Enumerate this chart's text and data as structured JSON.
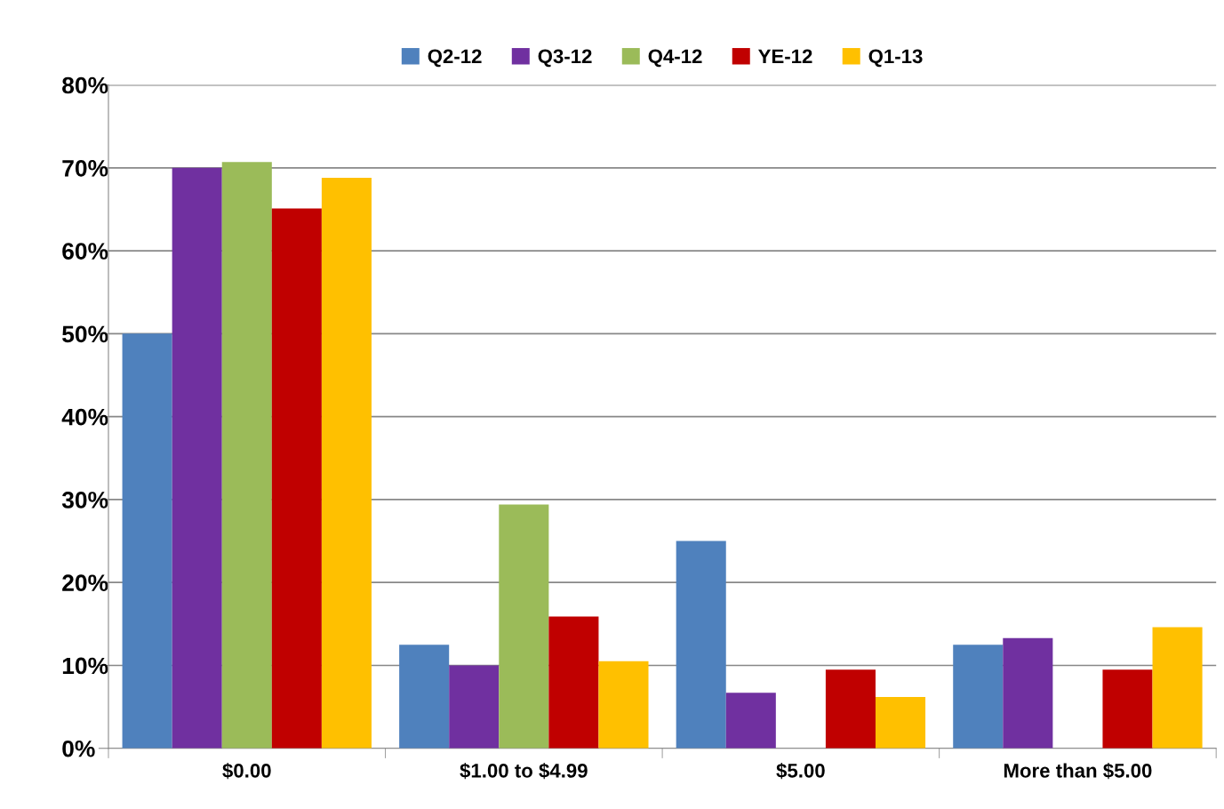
{
  "chart_data": {
    "type": "bar",
    "categories": [
      "$0.00",
      "$1.00 to $4.99",
      "$5.00",
      "More than $5.00"
    ],
    "series": [
      {
        "name": "Q2-12",
        "color": "#4f81bd",
        "values": [
          50,
          12.5,
          25,
          12.5
        ]
      },
      {
        "name": "Q3-12",
        "color": "#7030a0",
        "values": [
          70,
          10,
          6.7,
          13.3
        ]
      },
      {
        "name": "Q4-12",
        "color": "#9bbb59",
        "values": [
          70.7,
          29.4,
          0,
          0
        ]
      },
      {
        "name": "YE-12",
        "color": "#c00000",
        "values": [
          65.1,
          15.9,
          9.5,
          9.5
        ]
      },
      {
        "name": "Q1-13",
        "color": "#ffc000",
        "values": [
          68.8,
          10.5,
          6.2,
          14.6
        ]
      }
    ],
    "ylim": [
      0,
      80
    ],
    "yticks": [
      {
        "value": 0,
        "label": "0%"
      },
      {
        "value": 10,
        "label": "10%"
      },
      {
        "value": 20,
        "label": "20%"
      },
      {
        "value": 30,
        "label": "30%"
      },
      {
        "value": 40,
        "label": "40%"
      },
      {
        "value": 50,
        "label": "50%"
      },
      {
        "value": 60,
        "label": "60%"
      },
      {
        "value": 70,
        "label": "70%"
      },
      {
        "value": 80,
        "label": "80%"
      }
    ],
    "grid": "y",
    "legend": "top"
  }
}
